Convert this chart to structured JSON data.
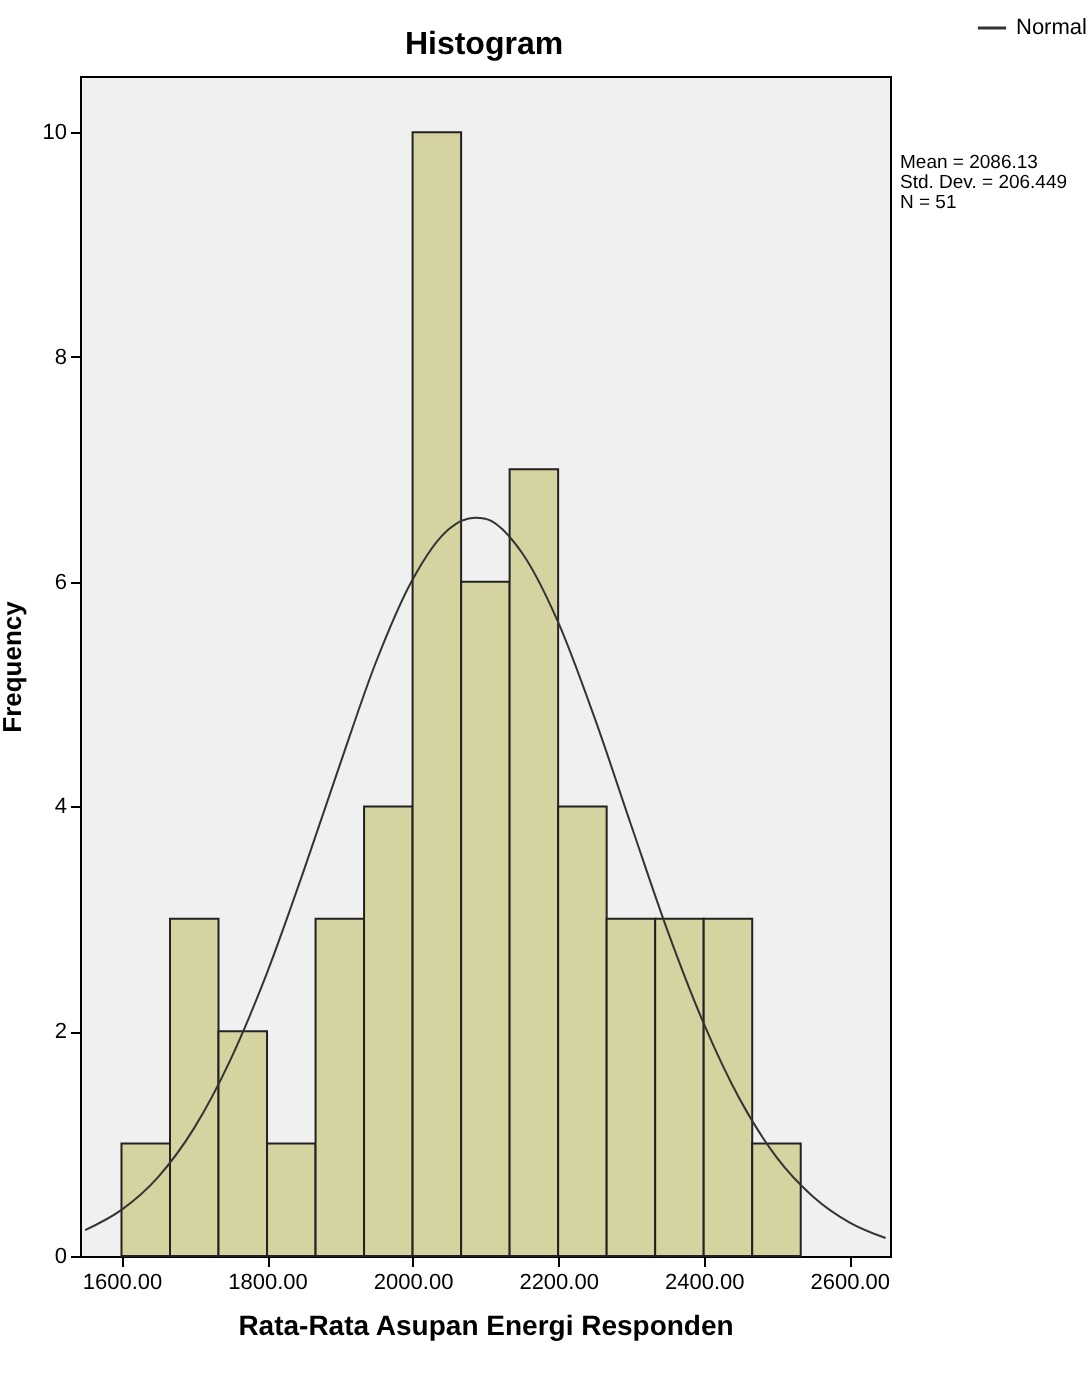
{
  "chart_data": {
    "type": "histogram",
    "title": "Histogram",
    "xlabel": "Rata-Rata Asupan Energi Responden",
    "ylabel": "Frequency",
    "bins": [
      1600,
      1666.67,
      1733.33,
      1800,
      1866.67,
      1933.33,
      2000,
      2066.67,
      2133.33,
      2200,
      2266.67,
      2333.33,
      2400,
      2466.67,
      2533.33
    ],
    "values": [
      1,
      3,
      2,
      1,
      3,
      4,
      10,
      6,
      7,
      4,
      3,
      3,
      3,
      1
    ],
    "color": "#d5d3a0",
    "series": [
      {
        "name": "Normal",
        "type": "line",
        "color": "#333333",
        "x": [
          1550,
          1600,
          1650,
          1700,
          1750,
          1800,
          1850,
          1900,
          1950,
          2000,
          2050,
          2086,
          2100,
          2150,
          2200,
          2250,
          2300,
          2350,
          2400,
          2450,
          2500,
          2550,
          2600,
          2650
        ],
        "values": [
          0.23,
          0.41,
          0.7,
          1.14,
          1.75,
          2.52,
          3.42,
          4.37,
          5.29,
          6.02,
          6.47,
          6.57,
          6.56,
          6.26,
          5.64,
          4.79,
          3.84,
          2.9,
          2.07,
          1.39,
          0.88,
          0.53,
          0.3,
          0.16
        ]
      }
    ],
    "xlim": [
      1543,
      2656
    ],
    "ylim": [
      0,
      10.5
    ],
    "xticks": [
      {
        "value": 1600,
        "label": "1600.00"
      },
      {
        "value": 1800,
        "label": "1800.00"
      },
      {
        "value": 2000,
        "label": "2000.00"
      },
      {
        "value": 2200,
        "label": "2200.00"
      },
      {
        "value": 2400,
        "label": "2400.00"
      },
      {
        "value": 2600,
        "label": "2600.00"
      }
    ],
    "yticks": [
      0,
      2,
      4,
      6,
      8,
      10
    ],
    "legend": "top right",
    "annotations": [
      "Mean = 2086.13",
      "Std. Dev. = 206.449",
      "N = 51"
    ]
  }
}
